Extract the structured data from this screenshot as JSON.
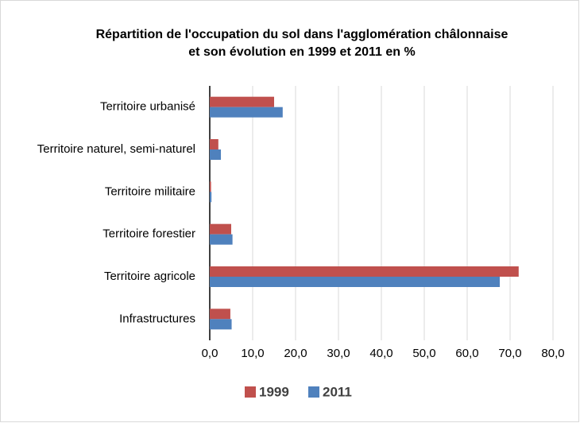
{
  "chart_data": {
    "type": "hbar",
    "title": [
      "Répartition de l'occupation du sol dans l'agglomération châlonnaise",
      "et son évolution en 1999 et 2011 en %"
    ],
    "categories": [
      "Territoire urbanisé",
      "Territoire naturel, semi-naturel",
      "Territoire militaire",
      "Territoire forestier",
      "Territoire agricole",
      "Infrastructures"
    ],
    "series": [
      {
        "name": "1999",
        "color": "#c0504d",
        "values": [
          15.0,
          2.0,
          0.3,
          5.0,
          72.0,
          4.8
        ]
      },
      {
        "name": "2011",
        "color": "#4f81bd",
        "values": [
          17.0,
          2.6,
          0.4,
          5.3,
          67.6,
          5.1
        ]
      }
    ],
    "xlim": [
      0,
      80
    ],
    "xticks": [
      {
        "value": 0,
        "label": "0,0"
      },
      {
        "value": 10,
        "label": "10,0"
      },
      {
        "value": 20,
        "label": "20,0"
      },
      {
        "value": 30,
        "label": "30,0"
      },
      {
        "value": 40,
        "label": "40,0"
      },
      {
        "value": 50,
        "label": "50,0"
      },
      {
        "value": 60,
        "label": "60,0"
      },
      {
        "value": 70,
        "label": "70,0"
      },
      {
        "value": 80,
        "label": "80,0"
      }
    ],
    "grid": true,
    "legend": "bottom"
  }
}
